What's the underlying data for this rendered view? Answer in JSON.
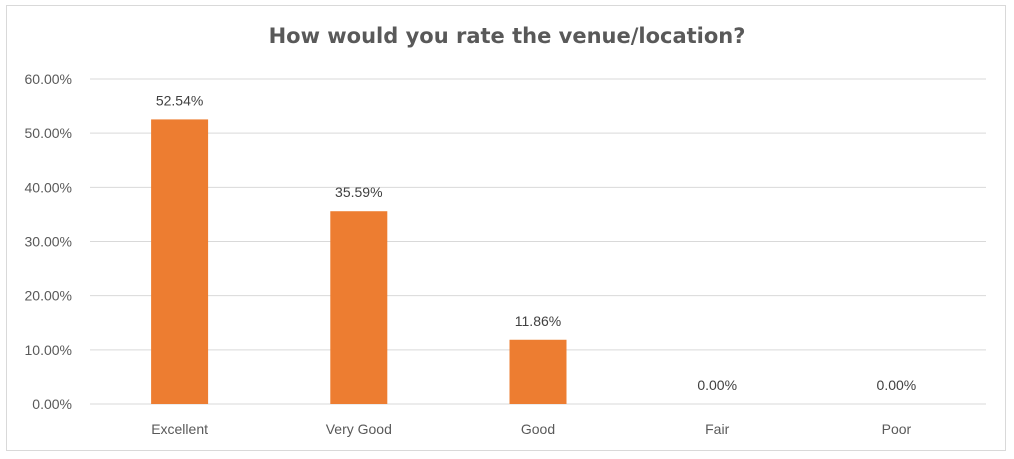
{
  "chart_data": {
    "type": "bar",
    "title": "How would you rate the venue/location?",
    "categories": [
      "Excellent",
      "Very Good",
      "Good",
      "Fair",
      "Poor"
    ],
    "values": [
      52.54,
      35.59,
      11.86,
      0.0,
      0.0
    ],
    "data_labels": [
      "52.54%",
      "35.59%",
      "11.86%",
      "0.00%",
      "0.00%"
    ],
    "ylim": [
      0,
      60
    ],
    "y_ticks": [
      0,
      10,
      20,
      30,
      40,
      50,
      60
    ],
    "y_tick_labels": [
      "0.00%",
      "10.00%",
      "20.00%",
      "30.00%",
      "40.00%",
      "50.00%",
      "60.00%"
    ],
    "xlabel": "",
    "ylabel": "",
    "grid": true,
    "legend": "none",
    "bar_color": "#ed7d31",
    "grid_color": "#d9d9d9"
  }
}
